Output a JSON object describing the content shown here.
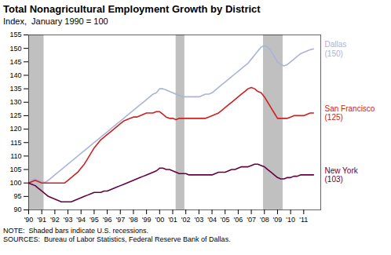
{
  "chart_data": {
    "type": "line",
    "title": "Total Nonagricultural Employment Growth by District",
    "subtitle": "Index,  January 1990 = 100",
    "note": "NOTE:  Shaded bars indicate U.S. recessions.\nSOURCES:  Bureau of Labor Statistics, Federal Reserve Bank of Dallas.",
    "xlim": [
      1990.0,
      2012.3
    ],
    "ylim": [
      90,
      155
    ],
    "yticks": [
      90,
      95,
      100,
      105,
      110,
      115,
      120,
      125,
      130,
      135,
      140,
      145,
      150,
      155
    ],
    "xticks": [
      {
        "value": 1990,
        "label": "'90"
      },
      {
        "value": 1991,
        "label": "'91"
      },
      {
        "value": 1992,
        "label": "'92"
      },
      {
        "value": 1993,
        "label": "'93"
      },
      {
        "value": 1994,
        "label": "'94"
      },
      {
        "value": 1995,
        "label": "'95"
      },
      {
        "value": 1996,
        "label": "'96"
      },
      {
        "value": 1997,
        "label": "'97"
      },
      {
        "value": 1998,
        "label": "'98"
      },
      {
        "value": 1999,
        "label": "'99"
      },
      {
        "value": 2000,
        "label": "'00"
      },
      {
        "value": 2001,
        "label": "'01"
      },
      {
        "value": 2002,
        "label": "'02"
      },
      {
        "value": 2003,
        "label": "'03"
      },
      {
        "value": 2004,
        "label": "'04"
      },
      {
        "value": 2005,
        "label": "'05"
      },
      {
        "value": 2006,
        "label": "'06"
      },
      {
        "value": 2007,
        "label": "'07"
      },
      {
        "value": 2008,
        "label": "'08"
      },
      {
        "value": 2009,
        "label": "'09"
      },
      {
        "value": 2010,
        "label": "'10"
      },
      {
        "value": 2011,
        "label": "'11"
      }
    ],
    "grid": false,
    "recessions": [
      {
        "x1": 1990.0,
        "x2": 1991.17
      },
      {
        "x1": 2001.25,
        "x2": 2001.92
      },
      {
        "x1": 2007.92,
        "x2": 2009.42
      }
    ],
    "recession_color": "#c0c0c0",
    "x": [
      1990.0,
      1990.25,
      1990.5,
      1990.75,
      1991.0,
      1991.25,
      1991.5,
      1991.75,
      1992.0,
      1992.25,
      1992.5,
      1992.75,
      1993.0,
      1993.25,
      1993.5,
      1993.75,
      1994.0,
      1994.25,
      1994.5,
      1994.75,
      1995.0,
      1995.25,
      1995.5,
      1995.75,
      1996.0,
      1996.25,
      1996.5,
      1996.75,
      1997.0,
      1997.25,
      1997.5,
      1997.75,
      1998.0,
      1998.25,
      1998.5,
      1998.75,
      1999.0,
      1999.25,
      1999.5,
      1999.75,
      2000.0,
      2000.25,
      2000.5,
      2000.75,
      2001.0,
      2001.25,
      2001.5,
      2001.75,
      2002.0,
      2002.25,
      2002.5,
      2002.75,
      2003.0,
      2003.25,
      2003.5,
      2003.75,
      2004.0,
      2004.25,
      2004.5,
      2004.75,
      2005.0,
      2005.25,
      2005.5,
      2005.75,
      2006.0,
      2006.25,
      2006.5,
      2006.75,
      2007.0,
      2007.25,
      2007.5,
      2007.75,
      2008.0,
      2008.25,
      2008.5,
      2008.75,
      2009.0,
      2009.25,
      2009.5,
      2009.75,
      2010.0,
      2010.25,
      2010.5,
      2010.75,
      2011.0,
      2011.25,
      2011.5,
      2011.75
    ],
    "series": [
      {
        "name": "Dallas\n(150)",
        "color": "#aab4d8",
        "values": [
          100.0,
          101.0,
          101.5,
          101.0,
          100.5,
          100.2,
          101.0,
          102.0,
          103.0,
          104.0,
          105.0,
          106.0,
          107.0,
          108.0,
          109.0,
          110.0,
          111.0,
          112.0,
          113.0,
          114.0,
          115.0,
          116.0,
          117.0,
          118.0,
          119.0,
          120.0,
          121.0,
          122.0,
          123.0,
          124.0,
          125.0,
          126.0,
          127.0,
          128.0,
          129.0,
          130.0,
          131.0,
          132.0,
          133.0,
          133.5,
          135.0,
          135.0,
          134.5,
          134.0,
          133.5,
          133.0,
          132.5,
          132.0,
          132.0,
          132.0,
          132.0,
          132.0,
          132.0,
          132.5,
          133.0,
          133.0,
          133.5,
          134.5,
          135.5,
          136.5,
          137.5,
          138.5,
          139.5,
          140.5,
          141.5,
          142.5,
          143.5,
          144.5,
          146.0,
          147.5,
          149.0,
          150.5,
          151.0,
          150.5,
          149.0,
          147.0,
          145.0,
          144.0,
          143.5,
          144.0,
          145.0,
          146.0,
          147.0,
          148.0,
          148.5,
          149.0,
          149.5,
          149.8
        ]
      },
      {
        "name": "San Francisco\n(125)",
        "color": "#cc2222",
        "values": [
          100.0,
          100.5,
          101.0,
          100.5,
          100.0,
          100.0,
          100.0,
          100.0,
          100.0,
          100.0,
          100.0,
          100.0,
          101.0,
          102.0,
          103.0,
          104.0,
          105.5,
          107.0,
          109.0,
          111.0,
          113.0,
          114.5,
          116.0,
          117.0,
          118.0,
          119.0,
          120.0,
          121.0,
          122.0,
          123.0,
          123.5,
          124.0,
          124.5,
          124.5,
          125.0,
          125.5,
          126.0,
          126.0,
          126.0,
          126.5,
          126.5,
          125.5,
          124.5,
          124.0,
          124.0,
          123.5,
          124.0,
          124.0,
          124.0,
          124.0,
          124.0,
          124.0,
          124.0,
          124.0,
          124.0,
          124.5,
          125.0,
          125.5,
          126.0,
          127.0,
          128.0,
          129.0,
          130.0,
          131.0,
          132.0,
          133.0,
          134.0,
          135.0,
          135.5,
          135.0,
          134.0,
          133.5,
          132.0,
          130.0,
          128.0,
          126.0,
          124.0,
          124.0,
          124.0,
          124.0,
          124.5,
          125.0,
          125.0,
          125.0,
          125.0,
          125.5,
          126.0,
          126.0
        ]
      },
      {
        "name": "New York\n(103)",
        "color": "#660044",
        "values": [
          100.0,
          99.5,
          99.0,
          98.0,
          97.0,
          96.0,
          95.0,
          94.5,
          94.0,
          93.5,
          93.0,
          93.0,
          93.0,
          93.0,
          93.5,
          94.0,
          94.5,
          95.0,
          95.5,
          96.0,
          96.5,
          96.5,
          96.5,
          97.0,
          97.0,
          97.5,
          98.0,
          98.5,
          99.0,
          99.5,
          100.0,
          100.5,
          101.0,
          101.5,
          102.0,
          102.5,
          103.0,
          103.5,
          104.0,
          104.5,
          105.5,
          105.5,
          105.0,
          105.0,
          104.5,
          104.0,
          103.5,
          103.5,
          103.5,
          103.0,
          103.0,
          103.0,
          103.0,
          103.0,
          103.0,
          103.0,
          103.0,
          103.5,
          104.0,
          104.0,
          104.0,
          104.5,
          105.0,
          105.0,
          105.5,
          106.0,
          106.0,
          106.0,
          106.5,
          107.0,
          107.0,
          106.5,
          106.0,
          105.0,
          104.0,
          103.0,
          102.0,
          101.5,
          101.5,
          102.0,
          102.0,
          102.5,
          102.5,
          103.0,
          103.0,
          103.0,
          103.0,
          103.0
        ]
      }
    ]
  }
}
